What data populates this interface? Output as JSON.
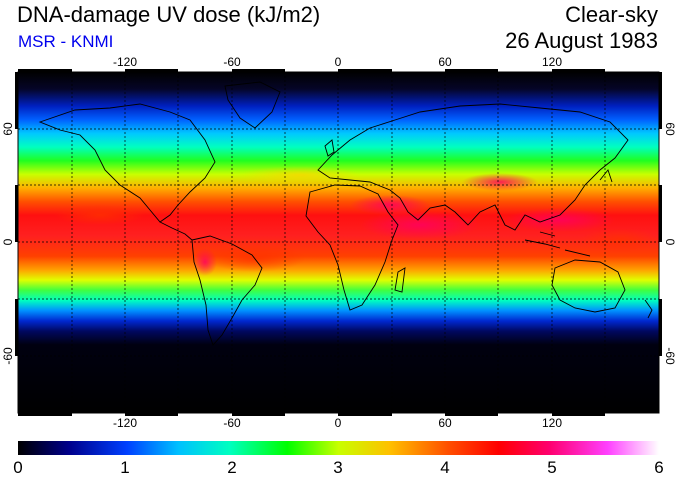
{
  "header": {
    "title": "DNA-damage UV dose (kJ/m2)",
    "source": "MSR - KNMI",
    "sky": "Clear-sky",
    "date": "26 August 1983"
  },
  "map": {
    "projection": "equirectangular",
    "lon_range": [
      -180,
      180
    ],
    "lat_range": [
      -90,
      90
    ],
    "lon_ticks": [
      "-120",
      "-60",
      "0",
      "60",
      "120"
    ],
    "lat_ticks": [
      "60",
      "0",
      "-60"
    ],
    "graticule": "dashed every 30 degrees",
    "field": "UV dose highest in northern tropics (~4-5, hotspots near 5.5 over Sahara/Arabia/Andes), decreasing toward poles, near 0 south of 60S"
  },
  "colorbar": {
    "labels": [
      "0",
      "1",
      "2",
      "3",
      "4",
      "5",
      "6"
    ],
    "colors": [
      "#000000",
      "#0000c8",
      "#0080ff",
      "#00ffff",
      "#00ff00",
      "#ffff00",
      "#ff9900",
      "#ff0000",
      "#ff00a0",
      "#ffffff"
    ]
  }
}
